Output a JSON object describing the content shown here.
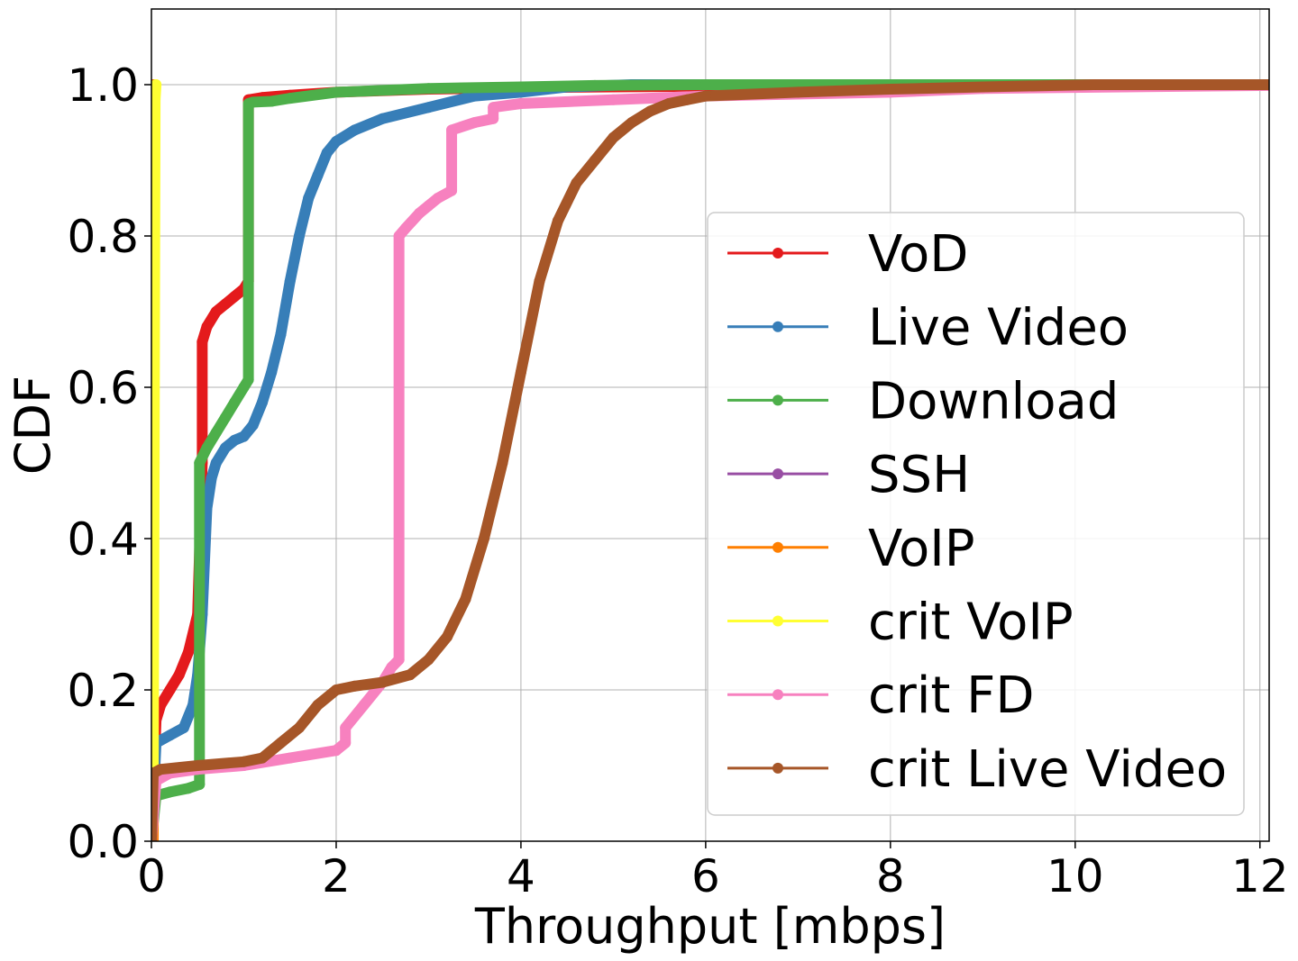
{
  "chart_data": {
    "type": "line",
    "xlabel": "Throughput [mbps]",
    "ylabel": "CDF",
    "xlim": [
      0,
      12.1
    ],
    "ylim": [
      0,
      1.1
    ],
    "xticks": [
      0,
      2,
      4,
      6,
      8,
      10,
      12
    ],
    "yticks": [
      0.0,
      0.2,
      0.4,
      0.6,
      0.8,
      1.0
    ],
    "xtick_labels": [
      "0",
      "2",
      "4",
      "6",
      "8",
      "10",
      "12"
    ],
    "ytick_labels": [
      "0.0",
      "0.2",
      "0.4",
      "0.6",
      "0.8",
      "1.0"
    ],
    "grid": true,
    "legend_position": "center-right",
    "series": [
      {
        "name": "VoD",
        "color": "#e41a1c",
        "x": [
          0.0,
          0.05,
          0.1,
          0.2,
          0.3,
          0.4,
          0.5,
          0.55,
          0.55,
          0.6,
          0.7,
          0.8,
          0.9,
          1.0,
          1.05,
          1.05,
          1.2,
          1.5,
          2.0,
          3.0,
          4.0,
          5.0,
          6.0,
          7.0,
          8.0,
          9.0,
          10.0,
          11.3
        ],
        "y": [
          0.0,
          0.16,
          0.18,
          0.2,
          0.22,
          0.25,
          0.3,
          0.5,
          0.66,
          0.68,
          0.7,
          0.71,
          0.72,
          0.73,
          0.74,
          0.98,
          0.983,
          0.986,
          0.99,
          0.994,
          0.996,
          0.997,
          0.998,
          0.998,
          0.999,
          0.999,
          1.0,
          1.0
        ]
      },
      {
        "name": "Live Video",
        "color": "#377eb8",
        "x": [
          0.0,
          0.05,
          0.2,
          0.35,
          0.45,
          0.5,
          0.55,
          0.6,
          0.65,
          0.7,
          0.8,
          0.9,
          1.0,
          1.1,
          1.2,
          1.3,
          1.4,
          1.5,
          1.6,
          1.7,
          1.8,
          1.9,
          2.0,
          2.2,
          2.5,
          3.0,
          3.5,
          4.0,
          4.5,
          5.2,
          6.6
        ],
        "y": [
          0.0,
          0.13,
          0.14,
          0.15,
          0.18,
          0.22,
          0.3,
          0.44,
          0.48,
          0.5,
          0.52,
          0.53,
          0.535,
          0.55,
          0.58,
          0.62,
          0.67,
          0.74,
          0.8,
          0.85,
          0.88,
          0.91,
          0.925,
          0.94,
          0.955,
          0.97,
          0.985,
          0.99,
          0.997,
          1.0,
          1.0
        ]
      },
      {
        "name": "Download",
        "color": "#4daf4a",
        "x": [
          0.0,
          0.05,
          0.2,
          0.4,
          0.52,
          0.52,
          0.6,
          0.7,
          0.8,
          0.9,
          1.0,
          1.05,
          1.05,
          1.1,
          1.3,
          1.5,
          2.0,
          3.0,
          4.0,
          4.8,
          6.0,
          8.1,
          12.1
        ],
        "y": [
          0.0,
          0.06,
          0.065,
          0.07,
          0.075,
          0.5,
          0.52,
          0.54,
          0.56,
          0.58,
          0.6,
          0.61,
          0.975,
          0.977,
          0.978,
          0.982,
          0.99,
          0.995,
          0.997,
          0.999,
          1.0,
          1.0,
          1.0
        ]
      },
      {
        "name": "SSH",
        "color": "#984ea3",
        "x": [
          0.0,
          0.01,
          0.01,
          0.02,
          0.03
        ],
        "y": [
          0.0,
          0.0,
          0.95,
          1.0,
          1.0
        ]
      },
      {
        "name": "VoIP",
        "color": "#ff7f00",
        "x": [
          0.0,
          0.02,
          0.02,
          0.03,
          0.04
        ],
        "y": [
          0.0,
          0.0,
          0.95,
          1.0,
          1.0
        ]
      },
      {
        "name": "crit VoIP",
        "color": "#ffff33",
        "x": [
          0.0,
          0.02,
          0.02,
          0.03,
          0.04,
          0.05
        ],
        "y": [
          0.0,
          0.08,
          0.1,
          0.5,
          0.98,
          1.0
        ]
      },
      {
        "name": "crit FD",
        "color": "#f781bf",
        "x": [
          0.0,
          0.05,
          0.2,
          0.5,
          1.0,
          1.5,
          2.0,
          2.1,
          2.1,
          2.3,
          2.5,
          2.6,
          2.68,
          2.68,
          2.75,
          2.9,
          3.0,
          3.1,
          3.25,
          3.25,
          3.5,
          3.7,
          3.7,
          4.0,
          5.0,
          6.0,
          8.0,
          9.0,
          12.1
        ],
        "y": [
          0.0,
          0.08,
          0.09,
          0.095,
          0.1,
          0.11,
          0.12,
          0.13,
          0.15,
          0.18,
          0.21,
          0.23,
          0.24,
          0.8,
          0.81,
          0.83,
          0.84,
          0.85,
          0.86,
          0.94,
          0.95,
          0.955,
          0.97,
          0.975,
          0.98,
          0.985,
          0.99,
          0.995,
          0.999
        ]
      },
      {
        "name": "crit Live Video",
        "color": "#a65628",
        "x": [
          0.0,
          0.02,
          0.1,
          0.5,
          1.0,
          1.2,
          1.4,
          1.6,
          1.8,
          2.0,
          2.2,
          2.5,
          2.8,
          3.0,
          3.2,
          3.4,
          3.6,
          3.8,
          4.0,
          4.2,
          4.4,
          4.6,
          4.8,
          5.0,
          5.2,
          5.4,
          5.6,
          5.8,
          6.0,
          7.0,
          8.0,
          9.0,
          10.2,
          11.3,
          12.1
        ],
        "y": [
          0.0,
          0.09,
          0.095,
          0.1,
          0.105,
          0.11,
          0.13,
          0.15,
          0.18,
          0.2,
          0.205,
          0.21,
          0.22,
          0.24,
          0.27,
          0.32,
          0.4,
          0.5,
          0.62,
          0.74,
          0.82,
          0.87,
          0.9,
          0.93,
          0.95,
          0.965,
          0.975,
          0.98,
          0.985,
          0.99,
          0.994,
          0.997,
          1.0,
          1.0,
          1.0
        ]
      }
    ]
  }
}
